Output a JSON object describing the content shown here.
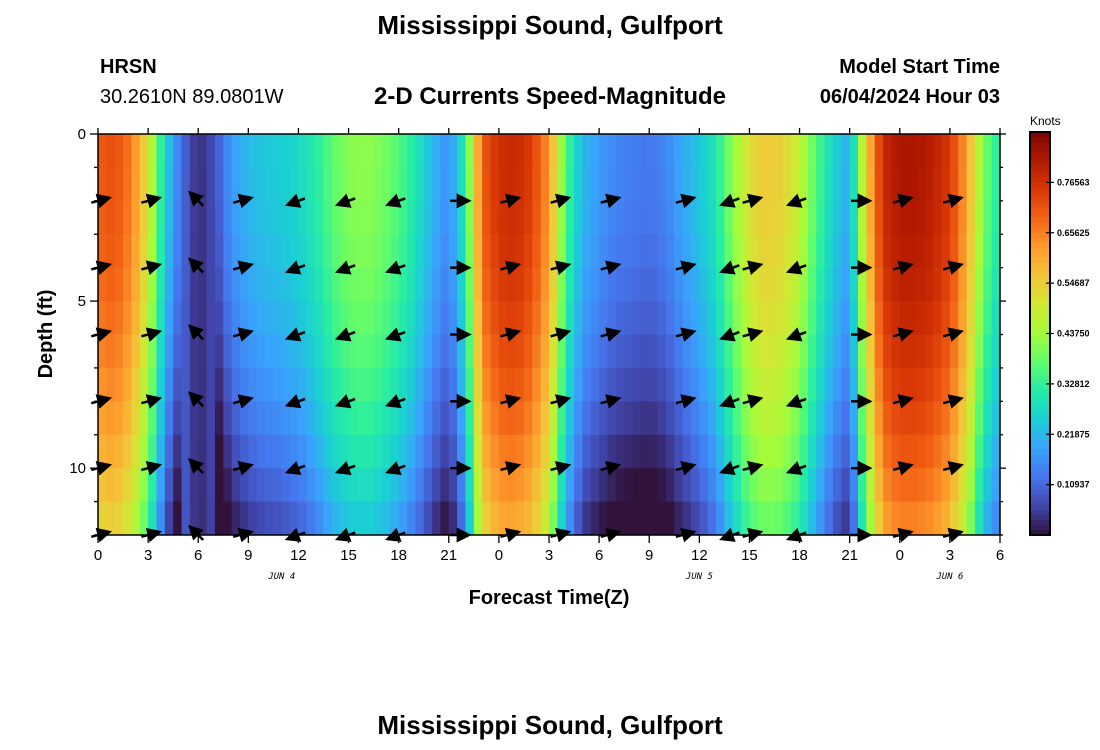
{
  "header": {
    "title": "Mississippi Sound, Gulfport",
    "station": "HRSN",
    "coords": "30.2610N  89.0801W",
    "subtitle": "2-D Currents Speed-Magnitude",
    "model_start_label": "Model Start Time",
    "model_start_value": "06/04/2024 Hour 03"
  },
  "footer": {
    "title": "Mississippi Sound, Gulfport"
  },
  "colorbar": {
    "units": "Knots",
    "ticks": [
      "0.76563",
      "0.65625",
      "0.54687",
      "0.43750",
      "0.32812",
      "0.21875",
      "0.10937"
    ],
    "tick_values": [
      0.76563,
      0.65625,
      0.54687,
      0.4375,
      0.32812,
      0.21875,
      0.10937
    ],
    "vmin": 0.0,
    "vmax": 0.875,
    "colormap": [
      "#30123b",
      "#4145ab",
      "#4675ed",
      "#39a2fc",
      "#1bcfd4",
      "#24eca6",
      "#61fc6c",
      "#a4fc3b",
      "#d1e834",
      "#f3c63a",
      "#fe9b2d",
      "#f36315",
      "#d93806",
      "#b11901",
      "#7a0403"
    ]
  },
  "chart_data": {
    "type": "heatmap",
    "xlabel": "Forecast Time(Z)",
    "ylabel": "Depth (ft)",
    "x_tick_labels": [
      "0",
      "3",
      "6",
      "9",
      "12",
      "15",
      "18",
      "21",
      "0",
      "3",
      "6",
      "9",
      "12",
      "15",
      "18",
      "21",
      "0",
      "3",
      "6"
    ],
    "x_tick_hours": [
      0,
      3,
      6,
      9,
      12,
      15,
      18,
      21,
      24,
      27,
      30,
      33,
      36,
      39,
      42,
      45,
      48,
      51,
      54
    ],
    "x_range": [
      0,
      54
    ],
    "date_labels": [
      {
        "label": "JUN 4",
        "hour": 11
      },
      {
        "label": "JUN 5",
        "hour": 36
      },
      {
        "label": "JUN 6",
        "hour": 51
      }
    ],
    "y_tick_labels": [
      "0",
      "5",
      "10"
    ],
    "y_tick_values": [
      0,
      5,
      10
    ],
    "y_range": [
      0,
      12
    ],
    "depth_levels": [
      0,
      2,
      4,
      6,
      8,
      10,
      12
    ],
    "speed_profile_hours": [
      0,
      1,
      2,
      3,
      4,
      5,
      6,
      7,
      8,
      9,
      10,
      11,
      12,
      13,
      14,
      15,
      16,
      17,
      18,
      19,
      20,
      21,
      22,
      23,
      24,
      25,
      26,
      27,
      28,
      29,
      30,
      31,
      32,
      33,
      34,
      35,
      36,
      37,
      38,
      39,
      40,
      41,
      42,
      43,
      44,
      45,
      46,
      47,
      48,
      49,
      50,
      51,
      52,
      53,
      54
    ],
    "surface_speed_knots": [
      0.7,
      0.72,
      0.66,
      0.52,
      0.26,
      0.12,
      0.03,
      0.08,
      0.18,
      0.22,
      0.24,
      0.25,
      0.27,
      0.31,
      0.37,
      0.41,
      0.42,
      0.4,
      0.36,
      0.3,
      0.22,
      0.16,
      0.32,
      0.7,
      0.77,
      0.78,
      0.74,
      0.63,
      0.36,
      0.22,
      0.18,
      0.15,
      0.14,
      0.13,
      0.15,
      0.2,
      0.24,
      0.3,
      0.42,
      0.52,
      0.56,
      0.54,
      0.48,
      0.36,
      0.26,
      0.2,
      0.55,
      0.78,
      0.82,
      0.82,
      0.8,
      0.75,
      0.62,
      0.4,
      0.3
    ],
    "depth_reduction_knots_at_12ft": 0.2,
    "arrow_hours": [
      0,
      3,
      6,
      8.5,
      12,
      15,
      18,
      21.5,
      24.5,
      27.5,
      30.5,
      35,
      38,
      39,
      42,
      45.5,
      48,
      51
    ],
    "arrow_dir_deg": [
      15,
      15,
      135,
      15,
      200,
      200,
      200,
      0,
      15,
      15,
      15,
      15,
      200,
      15,
      200,
      0,
      15,
      15
    ]
  }
}
